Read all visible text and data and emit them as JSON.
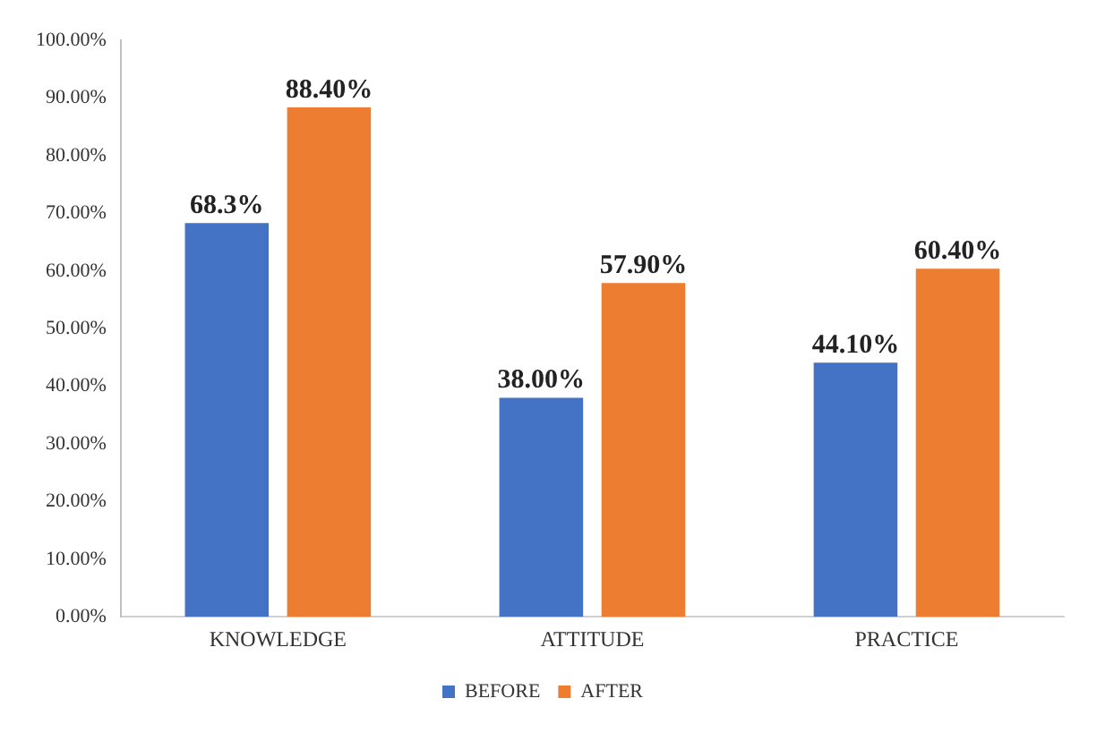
{
  "chart_data": {
    "type": "bar",
    "categories": [
      "KNOWLEDGE",
      "ATTITUDE",
      "PRACTICE"
    ],
    "series": [
      {
        "name": "BEFORE",
        "color": "#4472c4",
        "values": [
          68.3,
          38.0,
          44.1
        ],
        "value_labels": [
          "68.3%",
          "38.00%",
          "44.10%"
        ]
      },
      {
        "name": "AFTER",
        "color": "#ed7d31",
        "values": [
          88.4,
          57.9,
          60.4
        ],
        "value_labels": [
          "88.40%",
          "57.90%",
          "60.40%"
        ]
      }
    ],
    "ylim": [
      0,
      100
    ],
    "yticks": [
      {
        "value": 0,
        "label": "0.00%"
      },
      {
        "value": 10,
        "label": "10.00%"
      },
      {
        "value": 20,
        "label": "20.00%"
      },
      {
        "value": 30,
        "label": "30.00%"
      },
      {
        "value": 40,
        "label": "40.00%"
      },
      {
        "value": 50,
        "label": "50.00%"
      },
      {
        "value": 60,
        "label": "60.00%"
      },
      {
        "value": 70,
        "label": "70.00%"
      },
      {
        "value": 80,
        "label": "80.00%"
      },
      {
        "value": 90,
        "label": "90.00%"
      },
      {
        "value": 100,
        "label": "100.00%"
      }
    ],
    "grid": false,
    "legend": "bottom"
  }
}
